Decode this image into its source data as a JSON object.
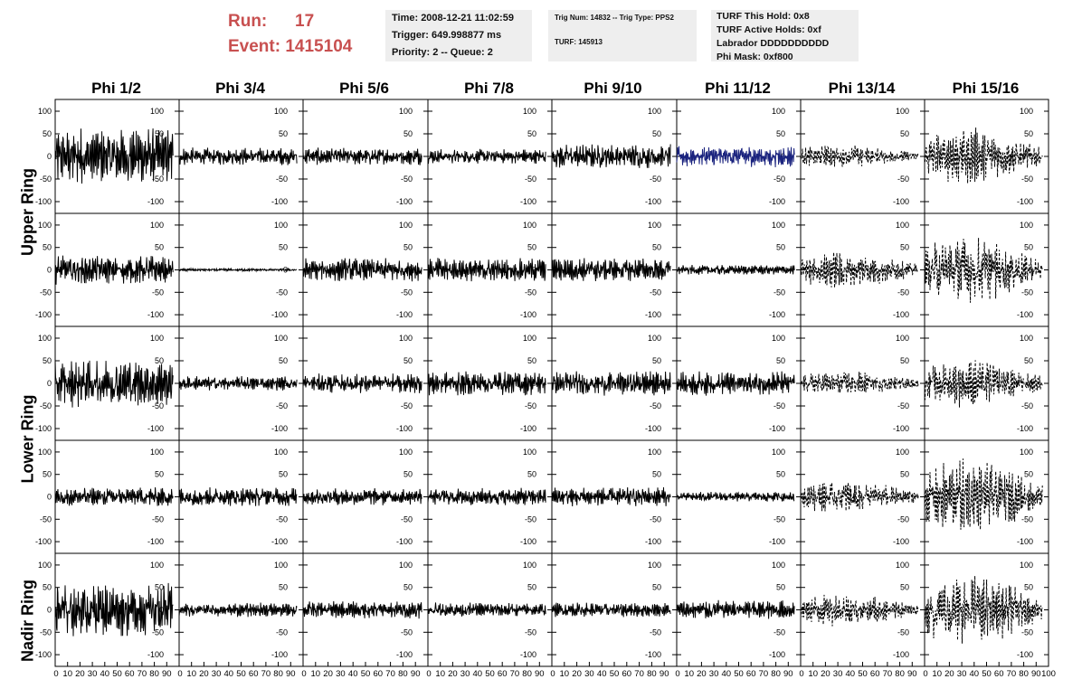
{
  "header": {
    "run_label": "Run:",
    "run_value": "17",
    "event_label": "Event:",
    "event_value": "1415104",
    "time": "Time: 2008-12-21 11:02:59",
    "trigger": "Trigger: 649.998877 ms",
    "priority": "Priority: 2 -- Queue: 2",
    "trig_num": "Trig Num: 14832 -- Trig Type: PPS2",
    "turf": "TURF: 145913",
    "turf_this_hold": "TURF This Hold: 0x8",
    "turf_active_holds": "TURF Active Holds: 0xf",
    "labrador": "Labrador DDDDDDDDDD",
    "phi_mask": "Phi Mask: 0xf800"
  },
  "chart_data": {
    "type": "line",
    "columns": [
      "Phi 1/2",
      "Phi 3/4",
      "Phi 5/6",
      "Phi 7/8",
      "Phi 9/10",
      "Phi 11/12",
      "Phi 13/14",
      "Phi 15/16"
    ],
    "rows": [
      "Upper Ring",
      "Upper Ring",
      "Lower Ring",
      "Lower Ring",
      "Nadir Ring"
    ],
    "row_labels": [
      "Upper Ring",
      "Lower Ring",
      "Nadir Ring"
    ],
    "xlim": [
      0,
      100
    ],
    "ylim": [
      -120,
      120
    ],
    "yticks": [
      -100,
      -50,
      0,
      50,
      100
    ],
    "xticks": [
      0,
      10,
      20,
      30,
      40,
      50,
      60,
      70,
      80,
      90,
      100
    ],
    "colors": {
      "trace": "#000000",
      "highlight": "#1a237e",
      "header_red": "#c85050"
    },
    "highlighted_panel": {
      "row": 0,
      "col": 5
    },
    "dashed_columns": [
      6,
      7
    ],
    "amplitudes": [
      [
        60,
        18,
        18,
        15,
        25,
        22,
        25,
        60
      ],
      [
        30,
        3,
        25,
        25,
        25,
        10,
        40,
        70
      ],
      [
        50,
        15,
        20,
        25,
        25,
        25,
        25,
        50
      ],
      [
        20,
        20,
        18,
        18,
        20,
        10,
        35,
        80
      ],
      [
        55,
        15,
        18,
        15,
        15,
        20,
        35,
        75
      ]
    ]
  }
}
